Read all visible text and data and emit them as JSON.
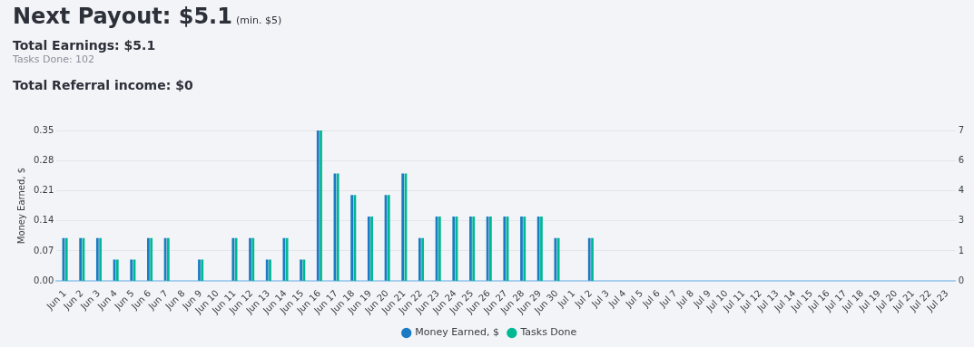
{
  "chart_data": {
    "type": "bar",
    "title": "Next Payout: $5.1",
    "annotations": [
      "(min. $5)",
      "Total Earnings: $5.1",
      "Tasks Done: 102",
      "Total Referral income: $0"
    ],
    "ylabel": "Money Earned, $",
    "categories": [
      "Jun 1",
      "Jun 2",
      "Jun 3",
      "Jun 4",
      "Jun 5",
      "Jun 6",
      "Jun 7",
      "Jun 8",
      "Jun 9",
      "Jun 10",
      "Jun 11",
      "Jun 12",
      "Jun 13",
      "Jun 14",
      "Jun 15",
      "Jun 16",
      "Jun 17",
      "Jun 18",
      "Jun 19",
      "Jun 20",
      "Jun 21",
      "Jun 22",
      "Jun 23",
      "Jun 24",
      "Jun 25",
      "Jun 26",
      "Jun 27",
      "Jun 28",
      "Jun 29",
      "Jun 30",
      "Jul 1",
      "Jul 2",
      "Jul 3",
      "Jul 4",
      "Jul 5",
      "Jul 6",
      "Jul 7",
      "Jul 8",
      "Jul 9",
      "Jul 10",
      "Jul 11",
      "Jul 12",
      "Jul 13",
      "Jul 14",
      "Jul 15",
      "Jul 16",
      "Jul 17",
      "Jul 18",
      "Jul 19",
      "Jul 20",
      "Jul 21",
      "Jul 22",
      "Jul 23"
    ],
    "series": [
      {
        "name": "Money Earned, $",
        "color": "#1a7bc4",
        "values": [
          0.1,
          0.1,
          0.1,
          0.05,
          0.05,
          0.1,
          0.1,
          0,
          0.05,
          0,
          0.1,
          0.1,
          0.05,
          0.1,
          0.05,
          0.35,
          0.25,
          0.2,
          0.15,
          0.2,
          0.25,
          0.1,
          0.15,
          0.15,
          0.15,
          0.15,
          0.15,
          0.15,
          0.15,
          0.1,
          0,
          0.1,
          0,
          0,
          0,
          0,
          0,
          0,
          0,
          0,
          0,
          0,
          0,
          0,
          0,
          0,
          0,
          0,
          0,
          0,
          0,
          0,
          0
        ]
      },
      {
        "name": "Tasks Done",
        "color": "#00b894",
        "axis": "y2",
        "values": [
          2,
          2,
          2,
          1,
          1,
          2,
          2,
          0,
          1,
          0,
          2,
          2,
          1,
          2,
          1,
          7,
          5,
          4,
          3,
          4,
          5,
          2,
          3,
          3,
          3,
          3,
          3,
          3,
          3,
          2,
          0,
          2,
          0,
          0,
          0,
          0,
          0,
          0,
          0,
          0,
          0,
          0,
          0,
          0,
          0,
          0,
          0,
          0,
          0,
          0,
          0,
          0,
          0
        ]
      }
    ],
    "ylim": [
      0,
      0.35
    ],
    "yticks": [
      "0.00",
      0.07,
      0.14,
      0.21,
      0.28,
      0.35
    ],
    "y2lim": [
      0,
      7
    ],
    "y2ticks": [
      0,
      {
        "value": 1.4,
        "label": "1"
      },
      {
        "value": 2.8,
        "label": "3"
      },
      {
        "value": 4.2,
        "label": "4"
      },
      {
        "value": 5.6,
        "label": "6"
      },
      7
    ],
    "grid": "y",
    "legend": "bottom"
  }
}
